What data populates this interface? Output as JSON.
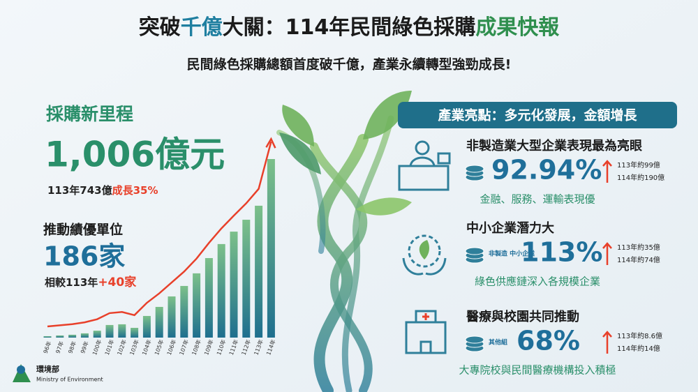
{
  "header": {
    "title_parts": [
      "突破",
      "千億",
      "大關：114年民間綠色採購",
      "成果快報"
    ],
    "subtitle": "民間綠色採購總額首度破千億，產業永續轉型強勁成長!"
  },
  "left": {
    "milestone_title": "採購新里程",
    "total": "1,006億元",
    "compare": "113年743億",
    "growth": "成長35%",
    "units_title": "推動績優單位",
    "units": "186家",
    "units_compare": "相較113年",
    "units_growth": "+40家"
  },
  "chart_data": {
    "type": "bar",
    "categories": [
      "96年",
      "97年",
      "98年",
      "99年",
      "100年",
      "101年",
      "102年",
      "103年",
      "104年",
      "105年",
      "106年",
      "107年",
      "108年",
      "109年",
      "110年",
      "111年",
      "112年",
      "113年",
      "114年"
    ],
    "values": [
      8,
      12,
      16,
      24,
      39,
      71,
      75,
      55,
      122,
      173,
      232,
      291,
      362,
      448,
      527,
      597,
      664,
      743,
      1006
    ],
    "color": "#2a8f8a",
    "trend_color": "#e8402a"
  },
  "highlights": {
    "heading": "產業亮點：多元化發展，金額增長",
    "items": [
      {
        "title": "非製造業大型企業表現最為亮眼",
        "tag": null,
        "percent": "92.94%",
        "note1": "113年約99億",
        "note2": "114年約190億",
        "desc": "金融、服務、運輸表現優"
      },
      {
        "title": "中小企業潛力大",
        "tag": "非製造 中小企業",
        "percent": "113%",
        "note1": "113年約35億",
        "note2": "114年約74億",
        "desc": "綠色供應鏈深入各規模企業"
      },
      {
        "title": "醫療與校園共同推動",
        "tag": "其他組",
        "percent": "68%",
        "note1": "113年約8.6億",
        "note2": "114年約14億",
        "desc": "大專院校與民間醫療機構投入積極"
      }
    ]
  },
  "logo": {
    "name": "環境部",
    "english": "Ministry of Environment"
  }
}
